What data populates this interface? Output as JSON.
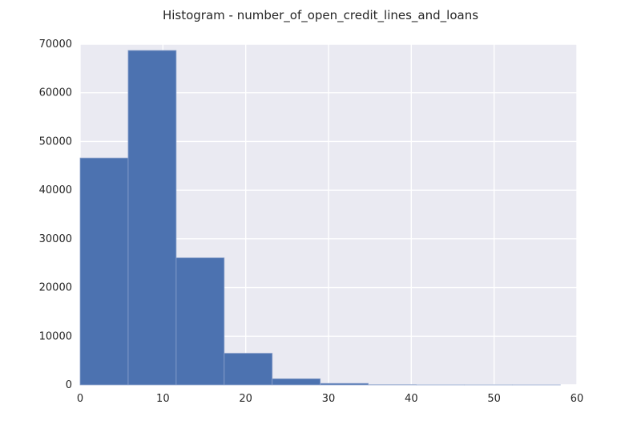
{
  "chart_data": {
    "type": "bar",
    "title": "Histogram - number_of_open_credit_lines_and_loans",
    "xlabel": "",
    "ylabel": "",
    "xlim": [
      0,
      60
    ],
    "ylim": [
      0,
      70000
    ],
    "x_ticks": [
      "0",
      "10",
      "20",
      "30",
      "40",
      "50",
      "60"
    ],
    "y_ticks": [
      "0",
      "10000",
      "20000",
      "30000",
      "40000",
      "50000",
      "60000",
      "70000"
    ],
    "bin_edges": [
      0,
      5.8,
      11.6,
      17.4,
      23.2,
      29.0,
      34.8,
      40.6,
      46.4,
      52.2,
      58.0
    ],
    "values": [
      46600,
      68700,
      26100,
      6500,
      1250,
      300,
      40,
      5,
      2,
      1
    ],
    "grid": true,
    "colors": {
      "bar": "#4c72b0",
      "bar_edge": "#8ea3cc",
      "plot_background": "#eaeaf2",
      "grid": "#ffffff",
      "text": "#262626"
    }
  }
}
